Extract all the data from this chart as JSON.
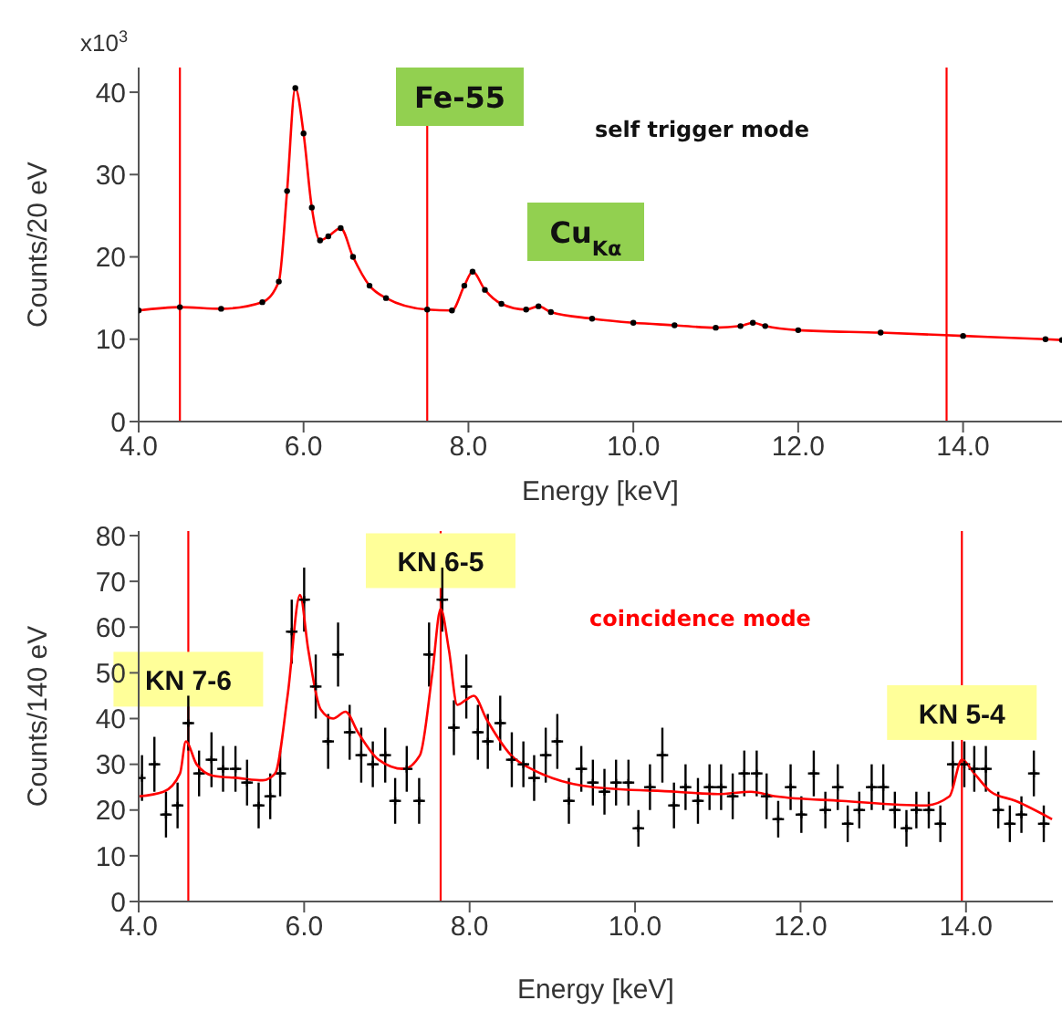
{
  "chart_data": [
    {
      "type": "scatter",
      "ylabel": "Counts/20 eV",
      "xlabel": "Energy [keV]",
      "xlim": [
        4,
        15.2
      ],
      "ylim": [
        0,
        43
      ],
      "xticks": [
        {
          "value": 4,
          "label": "4.0"
        },
        {
          "value": 6,
          "label": "6.0"
        },
        {
          "value": 8,
          "label": "8.0"
        },
        {
          "value": 10,
          "label": "10.0"
        },
        {
          "value": 12,
          "label": "12.0"
        },
        {
          "value": 14,
          "label": "14.0"
        }
      ],
      "yticks": [
        0,
        10,
        20,
        30,
        40
      ],
      "annotations": [
        "x10$^{3}$",
        "Fe-55",
        "Cu$_{Kα}$",
        "self trigger mode"
      ],
      "ref_lines": [
        {
          "axis": "x",
          "value": 4.5,
          "color": "#ff0000"
        },
        {
          "axis": "x",
          "value": 7.5,
          "color": "#ff0000"
        },
        {
          "axis": "x",
          "value": 13.8,
          "color": "#ff0000"
        }
      ],
      "series": [
        {
          "color": "#000000",
          "marker": "circle",
          "x": [
            4.0,
            4.5,
            5.0,
            5.5,
            5.7,
            5.8,
            5.9,
            6.0,
            6.1,
            6.2,
            6.3,
            6.45,
            6.6,
            6.8,
            7.0,
            7.5,
            7.8,
            7.95,
            8.05,
            8.2,
            8.4,
            8.7,
            8.85,
            9.0,
            9.5,
            10.0,
            10.5,
            11.0,
            11.3,
            11.45,
            11.6,
            12.0,
            13.0,
            14.0,
            15.0,
            15.2
          ],
          "values": [
            13.5,
            13.9,
            13.7,
            14.5,
            17,
            28,
            40.5,
            35,
            26,
            22,
            22.5,
            23.5,
            20,
            16.5,
            15,
            13.6,
            13.5,
            16.5,
            18.2,
            16,
            14.3,
            13.6,
            14,
            13.3,
            12.5,
            12,
            11.7,
            11.4,
            11.6,
            12,
            11.6,
            11.1,
            10.8,
            10.4,
            10,
            9.9
          ]
        },
        {
          "type": "line",
          "color": "#ff0000",
          "marker": "none",
          "x": [
            4.0,
            4.5,
            5.0,
            5.5,
            5.7,
            5.8,
            5.9,
            6.0,
            6.1,
            6.2,
            6.3,
            6.45,
            6.6,
            6.8,
            7.0,
            7.5,
            7.8,
            7.95,
            8.05,
            8.2,
            8.4,
            8.7,
            8.85,
            9.0,
            9.5,
            10.0,
            10.5,
            11.0,
            11.3,
            11.45,
            11.6,
            12.0,
            13.0,
            14.0,
            15.0,
            15.2
          ],
          "values": [
            13.5,
            13.9,
            13.7,
            14.5,
            17,
            28,
            40.5,
            35,
            26,
            22,
            22.5,
            23.5,
            20,
            16.5,
            15,
            13.6,
            13.5,
            16.5,
            18.2,
            16,
            14.3,
            13.6,
            14,
            13.3,
            12.5,
            12,
            11.7,
            11.4,
            11.6,
            12,
            11.6,
            11.1,
            10.8,
            10.4,
            10,
            9.9
          ]
        }
      ]
    },
    {
      "type": "scatter",
      "ylabel": "Counts/140 eV",
      "xlabel": "Energy [keV]",
      "xlim": [
        4,
        15.05
      ],
      "ylim": [
        0,
        81
      ],
      "xticks": [
        {
          "value": 4,
          "label": "4.0"
        },
        {
          "value": 6,
          "label": "6.0"
        },
        {
          "value": 8,
          "label": "8.0"
        },
        {
          "value": 10,
          "label": "10.0"
        },
        {
          "value": 12,
          "label": "12.0"
        },
        {
          "value": 14,
          "label": "14.0"
        }
      ],
      "yticks": [
        0,
        10,
        20,
        30,
        40,
        50,
        60,
        70,
        80
      ],
      "annotations": [
        "coincidence mode"
      ],
      "ref_lines": [
        {
          "axis": "x",
          "value": 4.6,
          "label": "KN 7-6",
          "color": "#ff0000"
        },
        {
          "axis": "x",
          "value": 7.65,
          "label": "KN 6-5",
          "color": "#ff0000"
        },
        {
          "axis": "x",
          "value": 13.95,
          "label": "KN 5-4",
          "color": "#ff0000"
        }
      ],
      "series": [
        {
          "color": "#000000",
          "marker": "cross",
          "x": [
            4.04,
            4.19,
            4.33,
            4.47,
            4.6,
            4.73,
            4.88,
            5.02,
            5.17,
            5.31,
            5.45,
            5.59,
            5.71,
            5.85,
            6.0,
            6.14,
            6.29,
            6.41,
            6.55,
            6.69,
            6.83,
            6.98,
            7.1,
            7.24,
            7.39,
            7.51,
            7.67,
            7.81,
            7.96,
            8.1,
            8.22,
            8.37,
            8.51,
            8.65,
            8.78,
            8.92,
            9.06,
            9.2,
            9.35,
            9.49,
            9.63,
            9.77,
            9.92,
            10.04,
            10.18,
            10.33,
            10.47,
            10.61,
            10.76,
            10.9,
            11.04,
            11.18,
            11.32,
            11.47,
            11.59,
            11.73,
            11.88,
            12.01,
            12.16,
            12.3,
            12.45,
            12.57,
            12.71,
            12.86,
            13.0,
            13.14,
            13.28,
            13.4,
            13.55,
            13.69,
            13.84,
            13.98,
            14.1,
            14.24,
            14.39,
            14.53,
            14.67,
            14.82,
            14.94
          ],
          "values": [
            27,
            30,
            19,
            21,
            39,
            28,
            31,
            29,
            29,
            26,
            21,
            23,
            28,
            59,
            66,
            47,
            35,
            54,
            37,
            32,
            30,
            32,
            22,
            29,
            22,
            54,
            66,
            38,
            47,
            37,
            35,
            39,
            31,
            30,
            27,
            32,
            35,
            22,
            29,
            26,
            24,
            26,
            26,
            16,
            25,
            32,
            21,
            25,
            22,
            25,
            25,
            23,
            28,
            28,
            23,
            18,
            25,
            19,
            28,
            20,
            25,
            17,
            20,
            25,
            25,
            20,
            16,
            20,
            20,
            17,
            30,
            30,
            29,
            29,
            20,
            17,
            19,
            28,
            17
          ],
          "errors": [
            5,
            6,
            5,
            5,
            6,
            5,
            6,
            5,
            5,
            5,
            5,
            5,
            5,
            7,
            7,
            7,
            6,
            7,
            6,
            6,
            5,
            6,
            5,
            5,
            5,
            7,
            7,
            6,
            7,
            6,
            6,
            6,
            6,
            5,
            5,
            6,
            6,
            5,
            5,
            5,
            5,
            5,
            5,
            4,
            5,
            6,
            5,
            5,
            5,
            5,
            5,
            5,
            5,
            5,
            5,
            4,
            5,
            4,
            5,
            4,
            5,
            4,
            4,
            5,
            5,
            4,
            4,
            4,
            4,
            4,
            5,
            5,
            5,
            5,
            4,
            4,
            4,
            5,
            4
          ],
          "xerrors": [
            null,
            0.07,
            0.07,
            0.07,
            0.07,
            0.07,
            0.07,
            0.07,
            0.07,
            0.07,
            0.07,
            0.07,
            0.07,
            0.07,
            0.07,
            0.07,
            0.07,
            0.07,
            0.07,
            0.07,
            0.07,
            0.07,
            0.07,
            0.07,
            0.07,
            0.07,
            0.07,
            0.07,
            0.07,
            0.07,
            0.07,
            0.07,
            0.07,
            0.07,
            0.07,
            0.07,
            0.07,
            0.07,
            0.07,
            0.07,
            0.07,
            0.07,
            0.07,
            0.07,
            0.07,
            0.07,
            0.07,
            0.07,
            0.07,
            0.07,
            0.07,
            0.07,
            0.07,
            0.07,
            0.07,
            0.07,
            0.07,
            0.07,
            0.07,
            0.07,
            0.07,
            0.07,
            0.07,
            0.07,
            0.07,
            0.07,
            0.07,
            0.07,
            0.07,
            0.07,
            0.07,
            0.07,
            0.07,
            0.07,
            0.07,
            0.07,
            0.07,
            0.07,
            0.07
          ]
        },
        {
          "type": "line",
          "color": "#ff0000",
          "marker": "none",
          "x": [
            4.0,
            4.3,
            4.5,
            4.57,
            4.7,
            4.9,
            5.2,
            5.5,
            5.65,
            5.8,
            5.95,
            6.05,
            6.2,
            6.35,
            6.5,
            6.65,
            6.9,
            7.2,
            7.4,
            7.55,
            7.65,
            7.75,
            7.85,
            7.95,
            8.05,
            8.2,
            8.5,
            8.8,
            9.0,
            9.5,
            10.5,
            11.0,
            11.4,
            11.7,
            12.5,
            13.5,
            13.8,
            13.95,
            14.1,
            14.3,
            14.6,
            15.04
          ],
          "values": [
            23,
            24,
            28,
            35,
            30,
            27.5,
            27,
            26.5,
            28,
            45,
            67,
            55,
            42,
            40,
            41.5,
            37,
            31,
            29,
            32,
            50,
            64,
            55,
            43,
            44,
            45,
            40,
            32,
            28.5,
            27,
            25,
            24,
            23.5,
            24,
            23,
            22,
            21,
            23,
            31,
            28,
            24,
            22,
            18
          ]
        }
      ]
    }
  ]
}
